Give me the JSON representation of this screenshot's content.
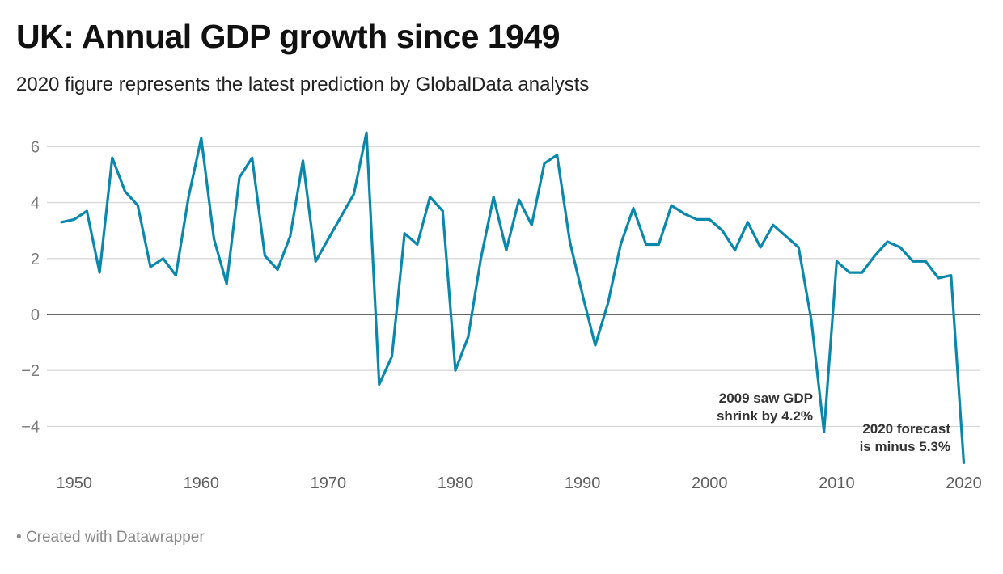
{
  "header": {
    "title": "UK: Annual GDP growth since 1949",
    "subtitle": "2020 figure represents the latest prediction by GlobalData analysts"
  },
  "footer": {
    "bullet": "•",
    "credit": "Created with Datawrapper"
  },
  "colors": {
    "line": "#0a88ab",
    "gridline": "#d9d9d9",
    "zero_line": "#333333"
  },
  "chart_data": {
    "type": "line",
    "title": "UK: Annual GDP growth since 1949",
    "subtitle": "2020 figure represents the latest prediction by GlobalData analysts",
    "xlabel": "",
    "ylabel": "",
    "xlim": [
      1949,
      2020
    ],
    "ylim": [
      -5.3,
      6.5
    ],
    "grid": true,
    "yticks": [
      -4,
      -2,
      0,
      2,
      4,
      6
    ],
    "ytick_labels": [
      "−4",
      "−2",
      "0",
      "2",
      "4",
      "6"
    ],
    "xticks": [
      1950,
      1960,
      1970,
      1980,
      1990,
      2000,
      2010,
      2020
    ],
    "xtick_labels": [
      "1950",
      "1960",
      "1970",
      "1980",
      "1990",
      "2000",
      "2010",
      "2020"
    ],
    "series": [
      {
        "name": "Annual GDP growth (%)",
        "x": [
          1949,
          1950,
          1951,
          1952,
          1953,
          1954,
          1955,
          1956,
          1957,
          1958,
          1959,
          1960,
          1961,
          1962,
          1963,
          1964,
          1965,
          1966,
          1967,
          1968,
          1969,
          1970,
          1971,
          1972,
          1973,
          1974,
          1975,
          1976,
          1977,
          1978,
          1979,
          1980,
          1981,
          1982,
          1983,
          1984,
          1985,
          1986,
          1987,
          1988,
          1989,
          1990,
          1991,
          1992,
          1993,
          1994,
          1995,
          1996,
          1997,
          1998,
          1999,
          2000,
          2001,
          2002,
          2003,
          2004,
          2005,
          2006,
          2007,
          2008,
          2009,
          2010,
          2011,
          2012,
          2013,
          2014,
          2015,
          2016,
          2017,
          2018,
          2019,
          2020
        ],
        "values": [
          3.3,
          3.4,
          3.7,
          1.5,
          5.6,
          4.4,
          3.9,
          1.7,
          2.0,
          1.4,
          4.2,
          6.3,
          2.7,
          1.1,
          4.9,
          5.6,
          2.1,
          1.6,
          2.8,
          5.5,
          1.9,
          2.7,
          3.5,
          4.3,
          6.5,
          -2.5,
          -1.5,
          2.9,
          2.5,
          4.2,
          3.7,
          -2.0,
          -0.8,
          2.0,
          4.2,
          2.3,
          4.1,
          3.2,
          5.4,
          5.7,
          2.6,
          0.7,
          -1.1,
          0.4,
          2.5,
          3.8,
          2.5,
          2.5,
          3.9,
          3.6,
          3.4,
          3.4,
          3.0,
          2.3,
          3.3,
          2.4,
          3.2,
          2.8,
          2.4,
          -0.2,
          -4.2,
          1.9,
          1.5,
          1.5,
          2.1,
          2.6,
          2.4,
          1.9,
          1.9,
          1.3,
          1.4,
          -5.3
        ]
      }
    ],
    "annotations": [
      {
        "lines": [
          "2009 saw GDP",
          "shrink by 4.2%"
        ],
        "x": 2009,
        "y": -4.2,
        "align": "right"
      },
      {
        "lines": [
          "2020 forecast",
          "is minus 5.3%"
        ],
        "x": 2020,
        "y": -5.3,
        "align": "right"
      }
    ]
  }
}
